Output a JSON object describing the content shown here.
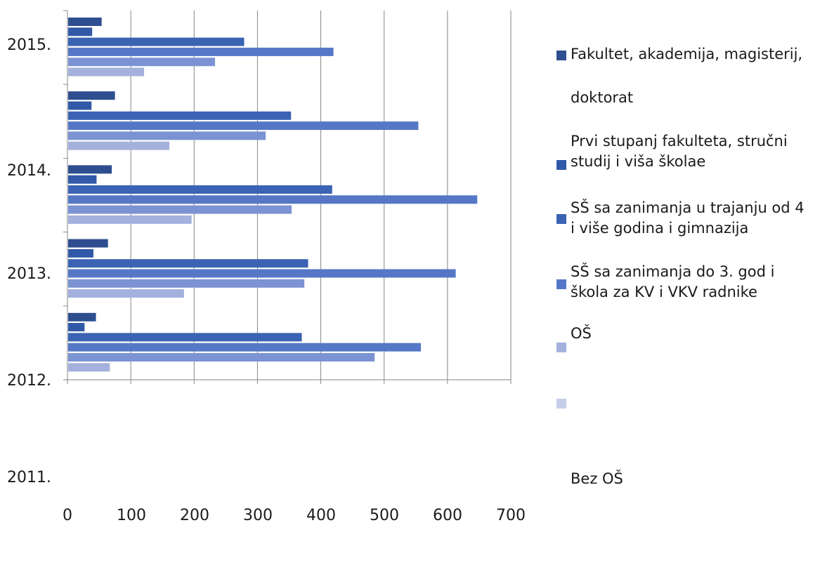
{
  "chart_data": {
    "type": "bar",
    "orientation": "horizontal",
    "y_tick_labels": [
      "2015.",
      "2014.",
      "2013.",
      "2012.",
      "2011."
    ],
    "x_tick_labels": [
      "0",
      "100",
      "200",
      "300",
      "400",
      "500",
      "600",
      "700"
    ],
    "xlim": [
      0,
      700
    ],
    "grid": true,
    "legend_position": "right",
    "legend_entries": [
      "Fakultet, akademija, magisterij,",
      "doktorat",
      "Prvi stupanj fakulteta, stručni studij i viša školae",
      "SŠ sa zanimanja u trajanju od 4 i više godina i gimnazija",
      "SŠ sa zanimanja do 3. god i škola za KV i VKV radnike",
      "OŠ",
      "Bez OŠ"
    ],
    "series_colors": [
      "#2e4e8f",
      "#3159a8",
      "#3b63b4",
      "#5577c6",
      "#7b93d2",
      "#a3b1dc",
      "#c5cde9"
    ],
    "groups": [
      {
        "values": [
          54,
          39,
          279,
          420,
          233,
          121
        ]
      },
      {
        "values": [
          75,
          38,
          353,
          554,
          313,
          161
        ]
      },
      {
        "values": [
          70,
          46,
          418,
          647,
          354,
          196
        ]
      },
      {
        "values": [
          64,
          41,
          380,
          613,
          374,
          184
        ]
      },
      {
        "values": [
          45,
          27,
          370,
          558,
          485,
          67
        ]
      }
    ]
  }
}
